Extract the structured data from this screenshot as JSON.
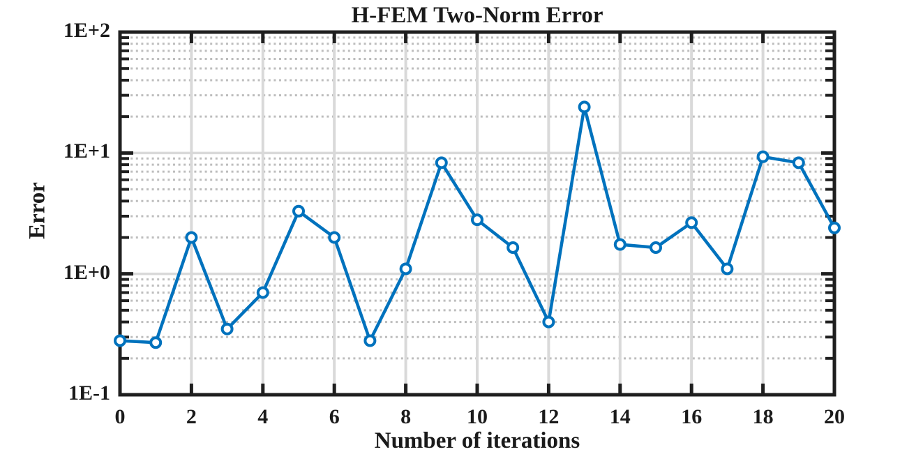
{
  "chart_data": {
    "type": "line",
    "title": "H-FEM Two-Norm Error",
    "xlabel": "Number of iterations",
    "ylabel": "Error",
    "x": [
      0,
      1,
      2,
      3,
      4,
      5,
      6,
      7,
      8,
      9,
      10,
      11,
      12,
      13,
      14,
      15,
      16,
      17,
      18,
      19,
      20
    ],
    "y": [
      0.28,
      0.27,
      2.0,
      0.35,
      0.7,
      3.3,
      2.0,
      0.28,
      1.1,
      8.3,
      2.8,
      1.65,
      0.4,
      24,
      1.75,
      1.65,
      2.65,
      1.1,
      9.3,
      8.3,
      2.4
    ],
    "xlim": [
      0,
      20
    ],
    "ylim": [
      0.1,
      100
    ],
    "y_scale": "log",
    "x_ticks": [
      {
        "value": 0,
        "label": "0"
      },
      {
        "value": 2,
        "label": "2"
      },
      {
        "value": 4,
        "label": "4"
      },
      {
        "value": 6,
        "label": "6"
      },
      {
        "value": 8,
        "label": "8"
      },
      {
        "value": 10,
        "label": "10"
      },
      {
        "value": 12,
        "label": "12"
      },
      {
        "value": 14,
        "label": "14"
      },
      {
        "value": 16,
        "label": "16"
      },
      {
        "value": 18,
        "label": "18"
      },
      {
        "value": 20,
        "label": "20"
      }
    ],
    "y_ticks": [
      {
        "value": 0.1,
        "label": "1E-1"
      },
      {
        "value": 1,
        "label": "1E+0"
      },
      {
        "value": 10,
        "label": "1E+1"
      },
      {
        "value": 100,
        "label": "1E+2"
      }
    ],
    "grid": {
      "major": "solid",
      "minor": "dotted",
      "minor_positions": "log-decade multiples 2-9"
    },
    "series": [
      {
        "name": "H-FEM two-norm error",
        "marker": "circle",
        "line_style": "solid"
      }
    ],
    "colors": {
      "line": "#0072BD",
      "marker_fill": "#ffffff",
      "major_grid": "#d9d9d9",
      "minor_grid": "#bdbdbd",
      "axis": "#1f1f1f",
      "text": "#1a1a1a",
      "background": "#ffffff"
    }
  }
}
